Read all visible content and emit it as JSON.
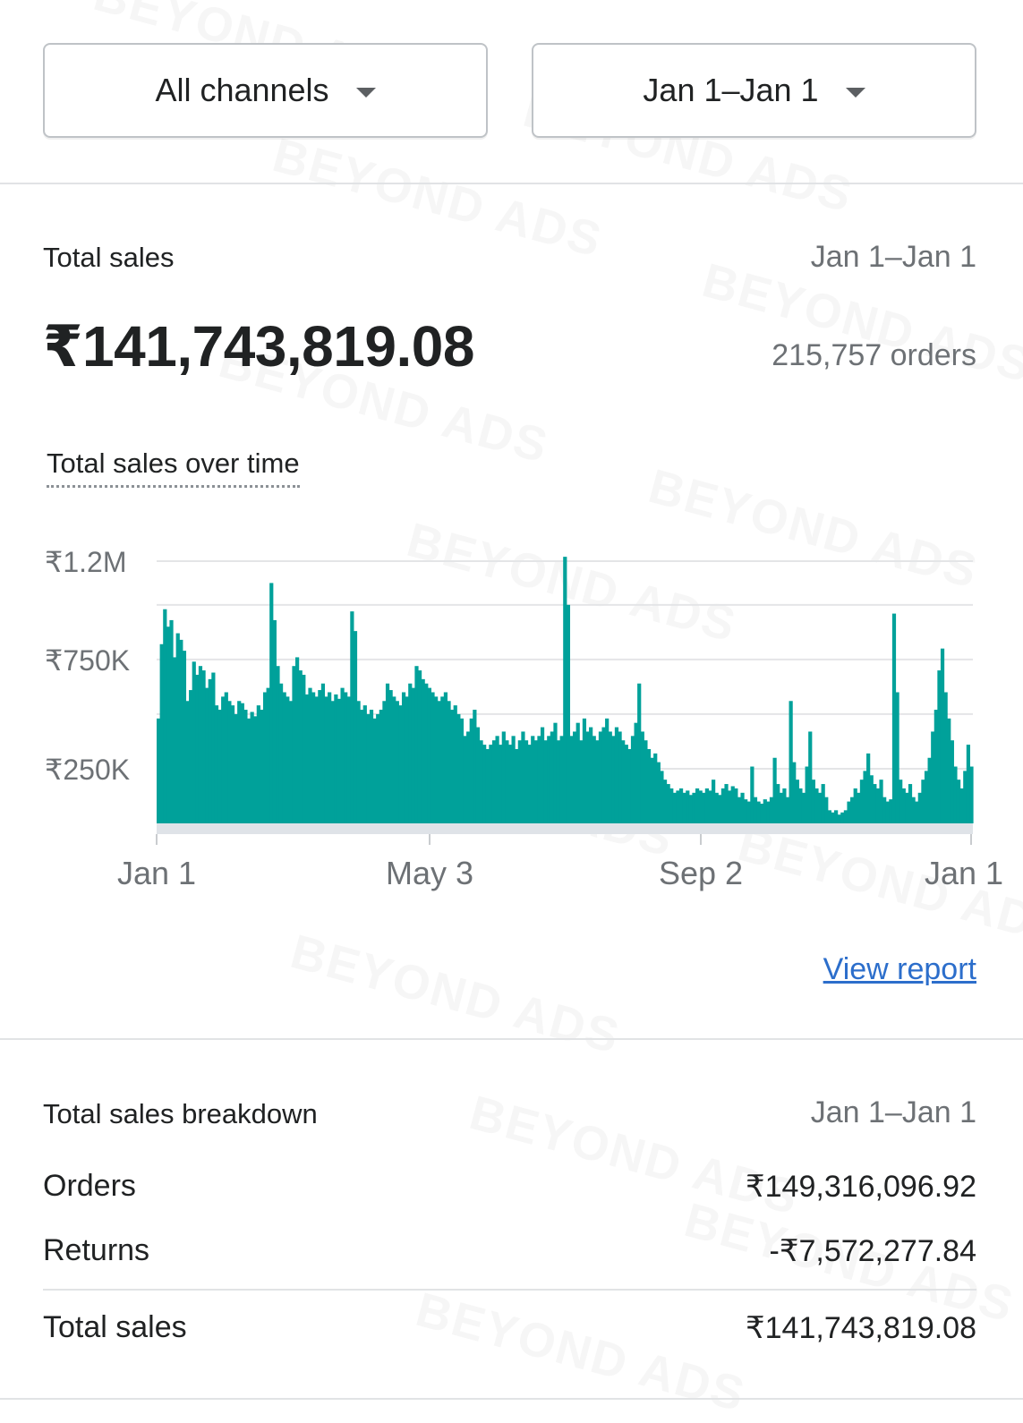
{
  "filters": {
    "channel_label": "All channels",
    "date_label": "Jan 1–Jan 1"
  },
  "summary": {
    "title": "Total sales",
    "date_range": "Jan 1–Jan 1",
    "total_value": "₹141,743,819.08",
    "orders_count": "215,757 orders"
  },
  "chart": {
    "title": "Total sales over time",
    "view_report_label": "View report"
  },
  "chart_data": {
    "type": "area",
    "title": "Total sales over time",
    "color": "#00a19a",
    "y_ticks": [
      "₹1.2M",
      "₹750K",
      "₹250K"
    ],
    "y_tick_values": [
      1200000,
      750000,
      250000
    ],
    "x_ticks": [
      "Jan 1",
      "May 3",
      "Sep 2",
      "Jan 1"
    ],
    "ylim": [
      0,
      1200000
    ],
    "values": [
      480000,
      820000,
      980000,
      900000,
      930000,
      760000,
      870000,
      840000,
      790000,
      560000,
      610000,
      740000,
      680000,
      720000,
      700000,
      620000,
      660000,
      690000,
      540000,
      520000,
      580000,
      600000,
      560000,
      540000,
      500000,
      560000,
      550000,
      520000,
      480000,
      510000,
      490000,
      540000,
      520000,
      600000,
      620000,
      1100000,
      930000,
      720000,
      640000,
      600000,
      580000,
      560000,
      720000,
      760000,
      700000,
      680000,
      590000,
      620000,
      600000,
      580000,
      610000,
      640000,
      580000,
      600000,
      560000,
      590000,
      570000,
      620000,
      600000,
      580000,
      970000,
      880000,
      560000,
      520000,
      540000,
      500000,
      520000,
      480000,
      500000,
      520000,
      560000,
      640000,
      610000,
      580000,
      560000,
      540000,
      600000,
      580000,
      640000,
      620000,
      720000,
      700000,
      660000,
      640000,
      620000,
      600000,
      580000,
      560000,
      580000,
      600000,
      560000,
      520000,
      540000,
      500000,
      480000,
      400000,
      420000,
      480000,
      520000,
      440000,
      380000,
      360000,
      340000,
      360000,
      380000,
      400000,
      360000,
      420000,
      380000,
      360000,
      400000,
      340000,
      380000,
      420000,
      380000,
      360000,
      400000,
      380000,
      400000,
      440000,
      380000,
      400000,
      420000,
      460000,
      380000,
      400000,
      1220000,
      1000000,
      400000,
      420000,
      460000,
      380000,
      480000,
      420000,
      440000,
      400000,
      380000,
      420000,
      440000,
      480000,
      420000,
      400000,
      440000,
      420000,
      380000,
      360000,
      340000,
      400000,
      460000,
      640000,
      420000,
      380000,
      340000,
      300000,
      320000,
      280000,
      240000,
      200000,
      180000,
      160000,
      140000,
      150000,
      160000,
      140000,
      150000,
      130000,
      140000,
      160000,
      150000,
      140000,
      160000,
      150000,
      200000,
      140000,
      130000,
      160000,
      180000,
      150000,
      170000,
      160000,
      120000,
      140000,
      110000,
      100000,
      260000,
      120000,
      100000,
      90000,
      110000,
      100000,
      120000,
      300000,
      180000,
      140000,
      160000,
      120000,
      560000,
      280000,
      200000,
      160000,
      140000,
      260000,
      420000,
      200000,
      160000,
      140000,
      180000,
      120000,
      60000,
      50000,
      60000,
      40000,
      50000,
      60000,
      100000,
      120000,
      160000,
      140000,
      200000,
      240000,
      320000,
      220000,
      180000,
      160000,
      200000,
      120000,
      100000,
      110000,
      960000,
      600000,
      200000,
      160000,
      140000,
      180000,
      120000,
      100000,
      140000,
      200000,
      240000,
      300000,
      420000,
      520000,
      700000,
      800000,
      600000,
      480000,
      380000,
      260000,
      200000,
      160000,
      240000,
      360000,
      260000
    ]
  },
  "breakdown": {
    "title": "Total sales breakdown",
    "date_range": "Jan 1–Jan 1",
    "rows": [
      {
        "label": "Orders",
        "value": "₹149,316,096.92"
      },
      {
        "label": "Returns",
        "value": "-₹7,572,277.84"
      }
    ],
    "total": {
      "label": "Total sales",
      "value": "₹141,743,819.08"
    }
  },
  "watermark": "BEYOND ADS"
}
